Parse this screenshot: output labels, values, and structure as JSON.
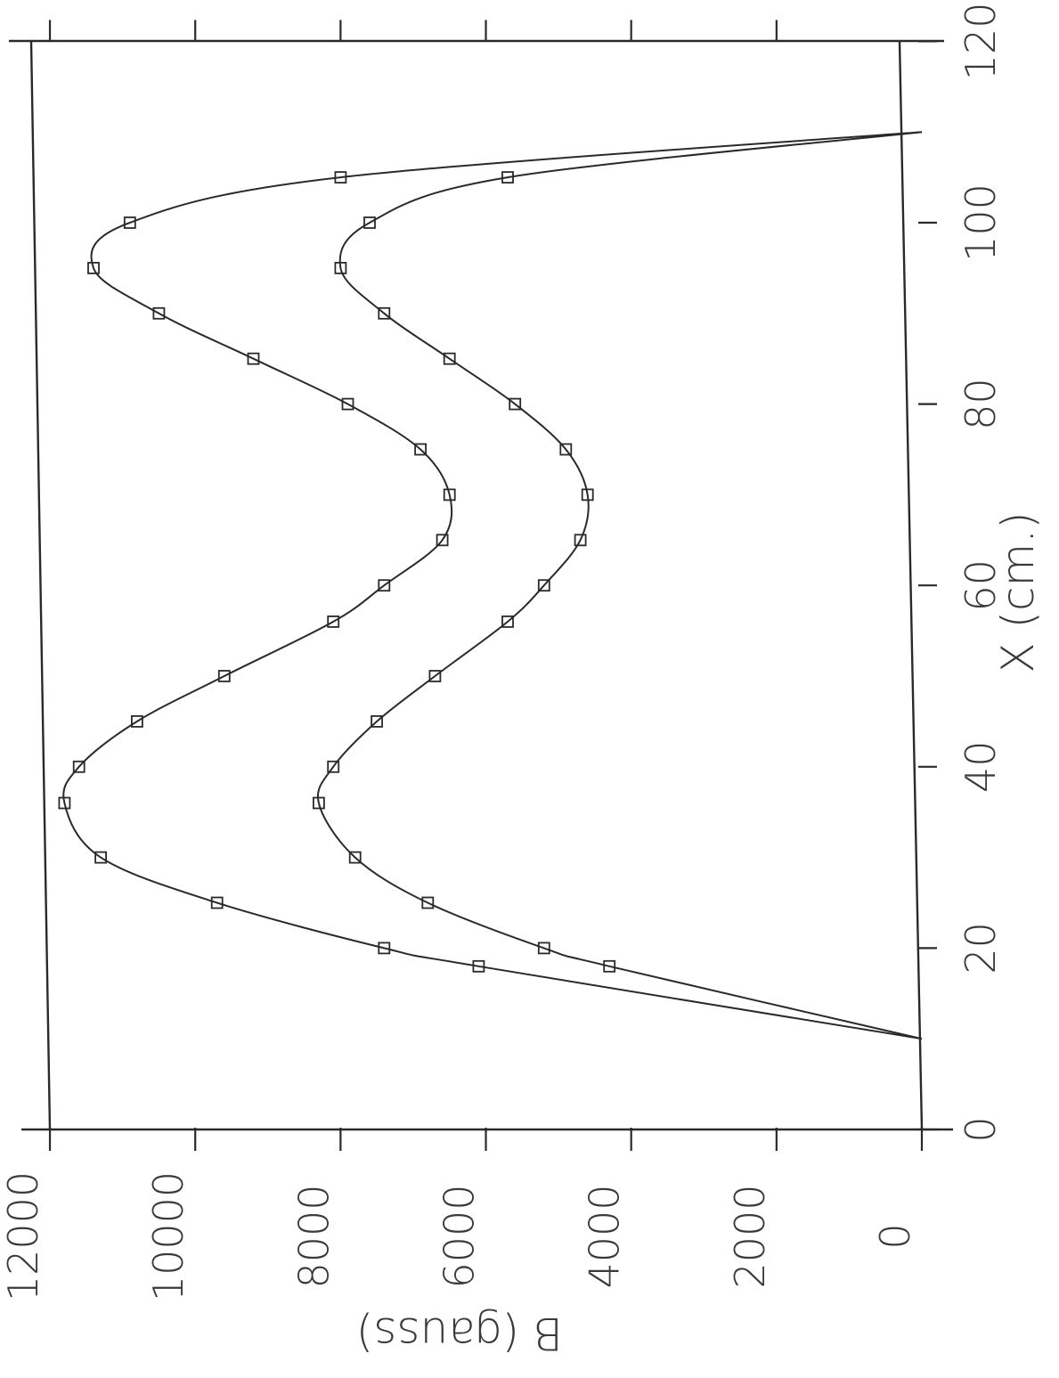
{
  "chart_data": {
    "type": "line",
    "orientation": "rotated 90 degrees clockwise",
    "xlabel": "X (cm.)",
    "ylabel": "B (gauss)",
    "xlim": [
      0,
      120
    ],
    "ylim": [
      0,
      12000
    ],
    "x_ticks": [
      "0",
      "20",
      "40",
      "60",
      "80",
      "100",
      "120"
    ],
    "y_ticks": [
      "0",
      "2000",
      "4000",
      "6000",
      "8000",
      "10000",
      "12000"
    ],
    "grid": false,
    "legend": "none",
    "series": [
      {
        "marker": "square",
        "x": [
          10,
          18,
          20,
          25,
          30,
          36,
          40,
          45,
          50,
          56,
          60,
          65,
          70,
          75,
          80,
          85,
          90,
          95,
          100,
          105,
          110
        ],
        "y": [
          0,
          6100,
          7400,
          9700,
          11300,
          11800,
          11600,
          10800,
          9600,
          8100,
          7400,
          6600,
          6500,
          6900,
          7900,
          9200,
          10500,
          11400,
          10900,
          8000,
          0
        ],
        "marked": [
          false,
          true,
          true,
          true,
          true,
          true,
          true,
          true,
          true,
          true,
          true,
          true,
          true,
          true,
          true,
          true,
          true,
          true,
          true,
          true,
          false
        ]
      },
      {
        "marker": "square",
        "x": [
          10,
          18,
          20,
          25,
          30,
          36,
          40,
          45,
          50,
          56,
          60,
          65,
          70,
          75,
          80,
          85,
          90,
          95,
          100,
          105,
          110
        ],
        "y": [
          0,
          4300,
          5200,
          6800,
          7800,
          8300,
          8100,
          7500,
          6700,
          5700,
          5200,
          4700,
          4600,
          4900,
          5600,
          6500,
          7400,
          8000,
          7600,
          5700,
          0
        ],
        "marked": [
          false,
          true,
          true,
          true,
          true,
          true,
          true,
          true,
          true,
          true,
          true,
          true,
          true,
          true,
          true,
          true,
          true,
          true,
          true,
          true,
          false
        ]
      }
    ]
  }
}
